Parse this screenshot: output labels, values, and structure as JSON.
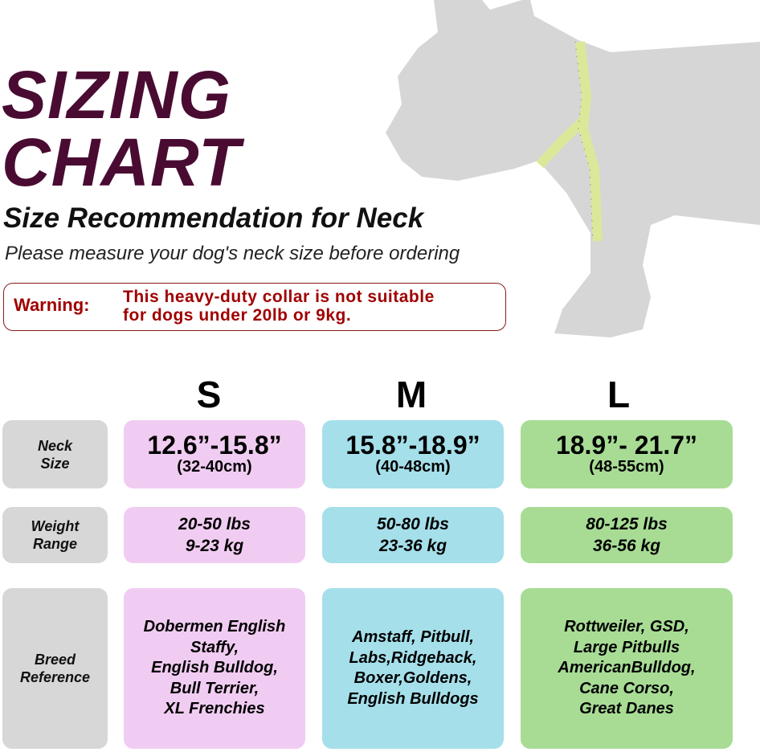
{
  "header": {
    "title_line1": "SIZING",
    "title_line2": "CHART",
    "subtitle": "Size Recommendation for Neck",
    "note": "Please measure your dog's neck size before ordering"
  },
  "warning": {
    "label": "Warning:",
    "line1": "This heavy-duty collar is not suitable",
    "line2": "for dogs under 20lb or 9kg."
  },
  "colors": {
    "title": "#4a0b32",
    "warning": "#a00000",
    "S": "#f1ccf2",
    "M": "#a5dfea",
    "L": "#a8dc95",
    "label": "#d7d7d7",
    "tape": "#dbe89a",
    "dog": "#d6d6d6"
  },
  "sizes": [
    {
      "name": "S",
      "neck_in": "12.6”-15.8”",
      "neck_cm": "(32-40cm)",
      "weight_lbs": "20-50 lbs",
      "weight_kg": "9-23 kg",
      "breeds": [
        "Dobermen English",
        "Staffy,",
        "English Bulldog,",
        "Bull Terrier,",
        "XL Frenchies"
      ]
    },
    {
      "name": "M",
      "neck_in": "15.8”-18.9”",
      "neck_cm": "(40-48cm)",
      "weight_lbs": "50-80 lbs",
      "weight_kg": "23-36 kg",
      "breeds": [
        "Amstaff, Pitbull,",
        "Labs,Ridgeback,",
        "Boxer,Goldens,",
        "English Bulldogs"
      ]
    },
    {
      "name": "L",
      "neck_in": "18.9”- 21.7”",
      "neck_cm": "(48-55cm)",
      "weight_lbs": "80-125 lbs",
      "weight_kg": "36-56 kg",
      "breeds": [
        "Rottweiler, GSD,",
        "Large Pitbulls",
        "AmericanBulldog,",
        "Cane Corso,",
        "Great Danes"
      ]
    }
  ],
  "row_labels": {
    "neck": [
      "Neck",
      "Size"
    ],
    "weight": [
      "Weight",
      "Range"
    ],
    "breed": [
      "Breed",
      "Reference"
    ]
  },
  "icons": {
    "dog": "dog-silhouette-icon",
    "tape": "measuring-tape-icon"
  }
}
